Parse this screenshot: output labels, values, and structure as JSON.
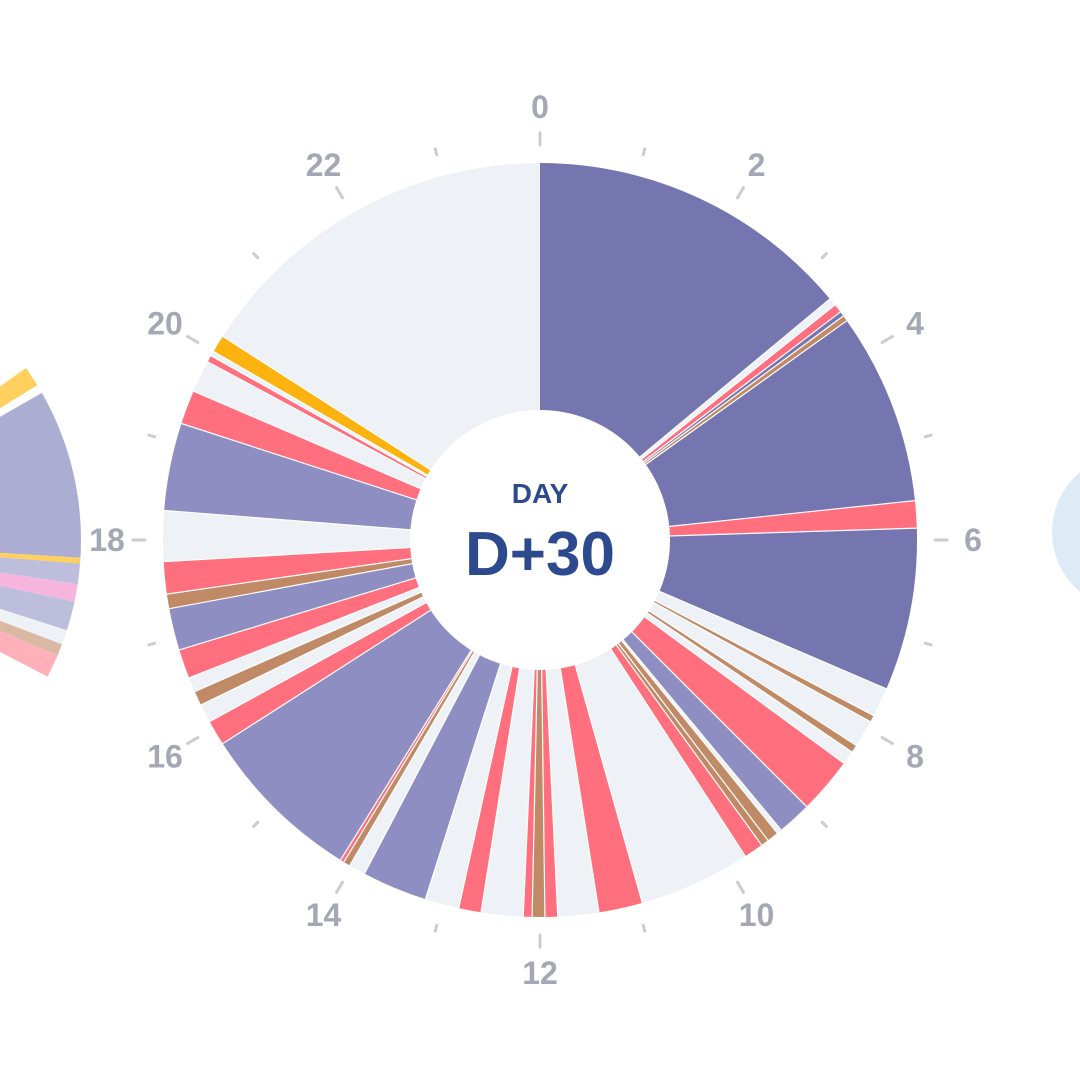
{
  "colors": {
    "sleep": "#7575B0",
    "sleep_light": "#8E8EC2",
    "awake": "#EEF2F6",
    "feed": "#FF6F7D",
    "diaper": "#C08A66",
    "play": "#FDB30F",
    "tick_label": "#A3A8B4",
    "tick_mark": "#C9CCD3",
    "center_text": "#2E4A8E"
  },
  "center": {
    "caption": "DAY",
    "value": "D+30"
  },
  "chart_data": {
    "type": "polar-timeline",
    "title": "",
    "hours_total": 24,
    "tick_labels": [
      {
        "hour": 0,
        "label": "0"
      },
      {
        "hour": 2,
        "label": "2"
      },
      {
        "hour": 4,
        "label": "4"
      },
      {
        "hour": 6,
        "label": "6"
      },
      {
        "hour": 8,
        "label": "8"
      },
      {
        "hour": 10,
        "label": "10"
      },
      {
        "hour": 12,
        "label": "12"
      },
      {
        "hour": 14,
        "label": "14"
      },
      {
        "hour": 16,
        "label": "16"
      },
      {
        "hour": 18,
        "label": "18"
      },
      {
        "hour": 20,
        "label": "20"
      },
      {
        "hour": 22,
        "label": "22"
      }
    ],
    "segments": [
      {
        "start": 0.0,
        "end": 3.35,
        "kind": "sleep"
      },
      {
        "start": 3.35,
        "end": 3.43,
        "kind": "awake"
      },
      {
        "start": 3.43,
        "end": 3.52,
        "kind": "feed"
      },
      {
        "start": 3.52,
        "end": 3.57,
        "kind": "sleep"
      },
      {
        "start": 3.57,
        "end": 3.63,
        "kind": "diaper"
      },
      {
        "start": 3.63,
        "end": 5.6,
        "kind": "sleep"
      },
      {
        "start": 5.6,
        "end": 5.88,
        "kind": "feed"
      },
      {
        "start": 5.88,
        "end": 7.55,
        "kind": "sleep"
      },
      {
        "start": 7.55,
        "end": 7.85,
        "kind": "awake"
      },
      {
        "start": 7.85,
        "end": 7.92,
        "kind": "diaper"
      },
      {
        "start": 7.92,
        "end": 8.2,
        "kind": "awake"
      },
      {
        "start": 8.2,
        "end": 8.28,
        "kind": "diaper"
      },
      {
        "start": 8.28,
        "end": 8.42,
        "kind": "awake"
      },
      {
        "start": 8.42,
        "end": 9.0,
        "kind": "feed"
      },
      {
        "start": 9.0,
        "end": 9.35,
        "kind": "sleep_light"
      },
      {
        "start": 9.35,
        "end": 9.4,
        "kind": "awake"
      },
      {
        "start": 9.4,
        "end": 9.52,
        "kind": "diaper"
      },
      {
        "start": 9.52,
        "end": 9.6,
        "kind": "diaper"
      },
      {
        "start": 9.6,
        "end": 9.8,
        "kind": "feed"
      },
      {
        "start": 9.8,
        "end": 10.95,
        "kind": "awake"
      },
      {
        "start": 10.95,
        "end": 11.4,
        "kind": "feed"
      },
      {
        "start": 11.4,
        "end": 11.82,
        "kind": "awake"
      },
      {
        "start": 11.82,
        "end": 11.95,
        "kind": "feed"
      },
      {
        "start": 11.95,
        "end": 12.08,
        "kind": "diaper"
      },
      {
        "start": 12.08,
        "end": 12.17,
        "kind": "feed"
      },
      {
        "start": 12.17,
        "end": 12.6,
        "kind": "awake"
      },
      {
        "start": 12.6,
        "end": 12.83,
        "kind": "feed"
      },
      {
        "start": 12.83,
        "end": 13.18,
        "kind": "awake"
      },
      {
        "start": 13.18,
        "end": 13.85,
        "kind": "sleep_light"
      },
      {
        "start": 13.85,
        "end": 14.02,
        "kind": "awake"
      },
      {
        "start": 14.02,
        "end": 14.09,
        "kind": "diaper"
      },
      {
        "start": 14.09,
        "end": 14.13,
        "kind": "feed"
      },
      {
        "start": 14.13,
        "end": 15.82,
        "kind": "sleep_light"
      },
      {
        "start": 15.82,
        "end": 16.08,
        "kind": "feed"
      },
      {
        "start": 16.08,
        "end": 16.27,
        "kind": "awake"
      },
      {
        "start": 16.27,
        "end": 16.42,
        "kind": "diaper"
      },
      {
        "start": 16.42,
        "end": 16.57,
        "kind": "awake"
      },
      {
        "start": 16.57,
        "end": 16.87,
        "kind": "feed"
      },
      {
        "start": 16.87,
        "end": 17.3,
        "kind": "sleep_light"
      },
      {
        "start": 17.3,
        "end": 17.45,
        "kind": "diaper"
      },
      {
        "start": 17.45,
        "end": 17.78,
        "kind": "feed"
      },
      {
        "start": 17.78,
        "end": 18.3,
        "kind": "awake"
      },
      {
        "start": 18.3,
        "end": 19.2,
        "kind": "sleep_light"
      },
      {
        "start": 19.2,
        "end": 19.55,
        "kind": "feed"
      },
      {
        "start": 19.55,
        "end": 19.88,
        "kind": "awake"
      },
      {
        "start": 19.88,
        "end": 19.95,
        "kind": "feed"
      },
      {
        "start": 19.95,
        "end": 20.0,
        "kind": "awake"
      },
      {
        "start": 20.0,
        "end": 20.18,
        "kind": "play"
      },
      {
        "start": 20.18,
        "end": 24.0,
        "kind": "awake"
      }
    ]
  }
}
